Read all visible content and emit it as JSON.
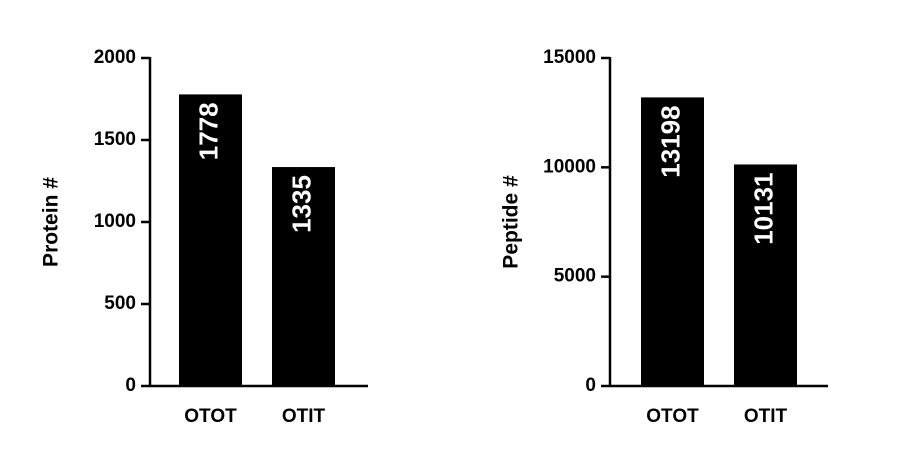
{
  "chart_data": [
    {
      "type": "bar",
      "y_label": "Protein #",
      "categories": [
        "OTOT",
        "OTIT"
      ],
      "values": [
        1778,
        1335
      ],
      "color": "#000000",
      "ylim": [
        0,
        2000
      ],
      "yticks": [
        0,
        500,
        1000,
        1500,
        2000
      ]
    },
    {
      "type": "bar",
      "y_label": "Peptide #",
      "categories": [
        "OTOT",
        "OTIT"
      ],
      "values": [
        13198,
        10131
      ],
      "color": "#000000",
      "ylim": [
        0,
        15000
      ],
      "yticks": [
        0,
        5000,
        10000,
        15000
      ]
    }
  ]
}
